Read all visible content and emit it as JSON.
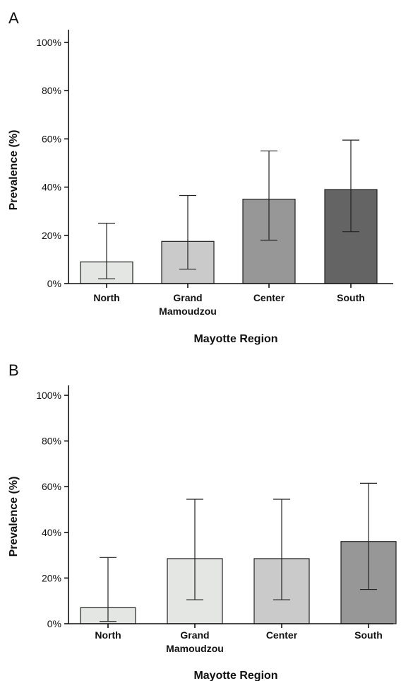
{
  "chart_data": [
    {
      "type": "bar",
      "panel": "A",
      "categories": [
        "North",
        "Grand\nMamoudzou",
        "Center",
        "South"
      ],
      "values": [
        9,
        17.5,
        35,
        39
      ],
      "error_low": [
        2,
        6,
        18,
        21.5
      ],
      "error_high": [
        25,
        36.5,
        55,
        59.5
      ],
      "bar_colors": [
        "#e4e6e4",
        "#c9cac9",
        "#979797",
        "#646464"
      ],
      "xlabel": "Mayotte Region",
      "ylabel": "Prevalence (%)",
      "ylim": [
        0,
        100
      ],
      "yticks": [
        "0%",
        "20%",
        "40%",
        "60%",
        "80%",
        "100%"
      ],
      "grid": false
    },
    {
      "type": "bar",
      "panel": "B",
      "categories": [
        "North",
        "Grand\nMamoudzou",
        "Center",
        "South"
      ],
      "values": [
        7,
        28.5,
        28.5,
        36
      ],
      "error_low": [
        1,
        10.5,
        10.5,
        15
      ],
      "error_high": [
        29,
        54.5,
        54.5,
        61.5
      ],
      "bar_colors": [
        "#e4e6e4",
        "#e4e6e4",
        "#c9cac9",
        "#979797"
      ],
      "xlabel": "Mayotte Region",
      "ylabel": "Prevalence (%)",
      "ylim": [
        0,
        100
      ],
      "yticks": [
        "0%",
        "20%",
        "40%",
        "60%",
        "80%",
        "100%"
      ],
      "grid": false
    }
  ]
}
